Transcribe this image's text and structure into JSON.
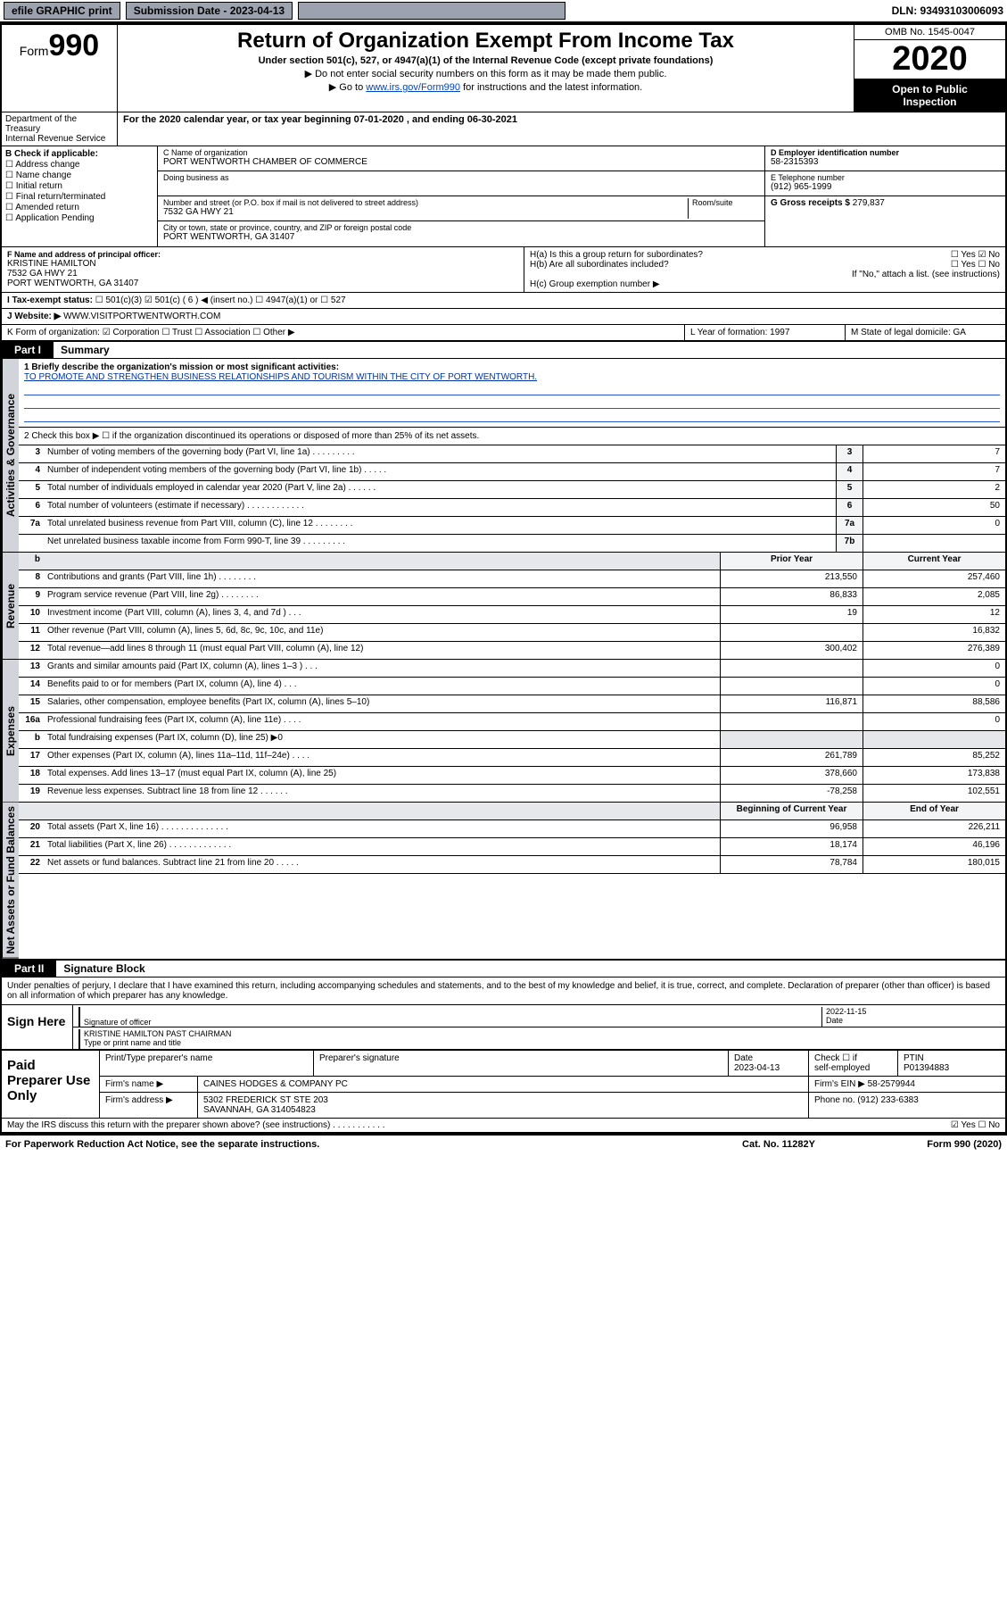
{
  "topBar": {
    "efile": "efile GRAPHIC print",
    "submissionLabel": "Submission Date - 2023-04-13",
    "dln": "DLN: 93493103006093"
  },
  "header": {
    "formWord": "Form",
    "formNum": "990",
    "title": "Return of Organization Exempt From Income Tax",
    "subtitle": "Under section 501(c), 527, or 4947(a)(1) of the Internal Revenue Code (except private foundations)",
    "note1": "▶ Do not enter social security numbers on this form as it may be made them public.",
    "note2pre": "▶ Go to ",
    "note2link": "www.irs.gov/Form990",
    "note2post": " for instructions and the latest information.",
    "omb": "OMB No. 1545-0047",
    "year": "2020",
    "inspection1": "Open to Public",
    "inspection2": "Inspection",
    "dept": "Department of the Treasury",
    "irs": "Internal Revenue Service"
  },
  "periodLine": "For the 2020 calendar year, or tax year beginning 07-01-2020    , and ending 06-30-2021",
  "boxB": {
    "label": "B Check if applicable:",
    "opts": [
      "☐ Address change",
      "☐ Name change",
      "☐ Initial return",
      "☐ Final return/terminated",
      "☐ Amended return",
      "☐ Application Pending"
    ]
  },
  "boxC": {
    "nameLabel": "C Name of organization",
    "name": "PORT WENTWORTH CHAMBER OF COMMERCE",
    "dba": "Doing business as",
    "streetLabel": "Number and street (or P.O. box if mail is not delivered to street address)",
    "roomLabel": "Room/suite",
    "street": "7532 GA HWY 21",
    "cityLabel": "City or town, state or province, country, and ZIP or foreign postal code",
    "city": "PORT WENTWORTH, GA  31407"
  },
  "boxD": {
    "label": "D Employer identification number",
    "value": "58-2315393"
  },
  "boxE": {
    "label": "E Telephone number",
    "value": "(912) 965-1999"
  },
  "boxG": {
    "label": "G Gross receipts $",
    "value": "279,837"
  },
  "boxF": {
    "label": "F  Name and address of principal officer:",
    "name": "KRISTINE HAMILTON",
    "addr1": "7532 GA HWY 21",
    "addr2": "PORT WENTWORTH, GA  31407"
  },
  "boxH": {
    "a": "H(a)  Is this a group return for subordinates?",
    "aYes": "☐ Yes  ☑ No",
    "b": "H(b)  Are all subordinates included?",
    "bYes": "☐ Yes  ☐ No",
    "bNote": "If \"No,\" attach a list. (see instructions)",
    "c": "H(c)  Group exemption number ▶"
  },
  "taxExempt": {
    "label": "I   Tax-exempt status:",
    "opts": "☐ 501(c)(3)   ☑ 501(c) ( 6 ) ◀ (insert no.)   ☐ 4947(a)(1) or   ☐ 527"
  },
  "website": {
    "label": "J   Website: ▶",
    "value": "WWW.VISITPORTWENTWORTH.COM"
  },
  "rowK": {
    "label": "K Form of organization:  ☑ Corporation  ☐ Trust  ☐ Association  ☐ Other ▶",
    "l": "L Year of formation: 1997",
    "m": "M State of legal domicile: GA"
  },
  "partI": {
    "tag": "Part I",
    "title": "Summary"
  },
  "summary": {
    "q1": "1  Briefly describe the organization's mission or most significant activities:",
    "mission": "TO PROMOTE AND STRENGTHEN BUSINESS RELATIONSHIPS AND TOURISM WITHIN THE CITY OF PORT WENTWORTH.",
    "q2": "2   Check this box ▶ ☐  if the organization discontinued its operations or disposed of more than 25% of its net assets.",
    "rows_gov": [
      {
        "n": "3",
        "d": "Number of voting members of the governing body (Part VI, line 1a)   .    .    .    .    .    .    .    .    .",
        "bn": "3",
        "v": "7"
      },
      {
        "n": "4",
        "d": "Number of independent voting members of the governing body (Part VI, line 1b)   .    .    .    .    .",
        "bn": "4",
        "v": "7"
      },
      {
        "n": "5",
        "d": "Total number of individuals employed in calendar year 2020 (Part V, line 2a)   .    .    .    .    .    .",
        "bn": "5",
        "v": "2"
      },
      {
        "n": "6",
        "d": "Total number of volunteers (estimate if necessary)   .    .    .    .    .    .    .    .    .    .    .    .",
        "bn": "6",
        "v": "50"
      },
      {
        "n": "7a",
        "d": "Total unrelated business revenue from Part VIII, column (C), line 12   .    .    .    .    .    .    .    .",
        "bn": "7a",
        "v": "0"
      },
      {
        "n": "",
        "d": "Net unrelated business taxable income from Form 990-T, line 39   .    .    .    .    .    .    .    .    .",
        "bn": "7b",
        "v": ""
      }
    ],
    "hdr": {
      "py": "Prior Year",
      "cy": "Current Year"
    },
    "rows_rev": [
      {
        "n": "8",
        "d": "Contributions and grants (Part VIII, line 1h)   .    .    .    .    .    .    .    .",
        "py": "213,550",
        "cy": "257,460"
      },
      {
        "n": "9",
        "d": "Program service revenue (Part VIII, line 2g)   .    .    .    .    .    .    .    .",
        "py": "86,833",
        "cy": "2,085"
      },
      {
        "n": "10",
        "d": "Investment income (Part VIII, column (A), lines 3, 4, and 7d )   .    .    .",
        "py": "19",
        "cy": "12"
      },
      {
        "n": "11",
        "d": "Other revenue (Part VIII, column (A), lines 5, 6d, 8c, 9c, 10c, and 11e)",
        "py": "",
        "cy": "16,832"
      },
      {
        "n": "12",
        "d": "Total revenue—add lines 8 through 11 (must equal Part VIII, column (A), line 12)",
        "py": "300,402",
        "cy": "276,389"
      }
    ],
    "rows_exp": [
      {
        "n": "13",
        "d": "Grants and similar amounts paid (Part IX, column (A), lines 1–3 )   .    .    .",
        "py": "",
        "cy": "0"
      },
      {
        "n": "14",
        "d": "Benefits paid to or for members (Part IX, column (A), line 4)   .    .    .",
        "py": "",
        "cy": "0"
      },
      {
        "n": "15",
        "d": "Salaries, other compensation, employee benefits (Part IX, column (A), lines 5–10)",
        "py": "116,871",
        "cy": "88,586"
      },
      {
        "n": "16a",
        "d": "Professional fundraising fees (Part IX, column (A), line 11e)   .    .    .    .",
        "py": "",
        "cy": "0"
      },
      {
        "n": "b",
        "d": "Total fundraising expenses (Part IX, column (D), line 25)  ▶0",
        "py": "—shade—",
        "cy": "—shade—"
      },
      {
        "n": "17",
        "d": "Other expenses (Part IX, column (A), lines 11a–11d, 11f–24e)   .    .    .    .",
        "py": "261,789",
        "cy": "85,252"
      },
      {
        "n": "18",
        "d": "Total expenses. Add lines 13–17 (must equal Part IX, column (A), line 25)",
        "py": "378,660",
        "cy": "173,838"
      },
      {
        "n": "19",
        "d": "Revenue less expenses. Subtract line 18 from line 12   .    .    .    .    .    .",
        "py": "-78,258",
        "cy": "102,551"
      }
    ],
    "hdr2": {
      "py": "Beginning of Current Year",
      "cy": "End of Year"
    },
    "rows_net": [
      {
        "n": "20",
        "d": "Total assets (Part X, line 16)   .    .    .    .    .    .    .    .    .    .    .    .    .    .",
        "py": "96,958",
        "cy": "226,211"
      },
      {
        "n": "21",
        "d": "Total liabilities (Part X, line 26)   .    .    .    .    .    .    .    .    .    .    .    .    .",
        "py": "18,174",
        "cy": "46,196"
      },
      {
        "n": "22",
        "d": "Net assets or fund balances. Subtract line 21 from line 20   .    .    .    .    .",
        "py": "78,784",
        "cy": "180,015"
      }
    ]
  },
  "vtabs": {
    "gov": "Activities & Governance",
    "rev": "Revenue",
    "exp": "Expenses",
    "net": "Net Assets or Fund Balances"
  },
  "partII": {
    "tag": "Part II",
    "title": "Signature Block"
  },
  "sigPara": "Under penalties of perjury, I declare that I have examined this return, including accompanying schedules and statements, and to the best of my knowledge and belief, it is true, correct, and complete. Declaration of preparer (other than officer) is based on all information of which preparer has any knowledge.",
  "sign": {
    "here": "Sign Here",
    "sigOf": "Signature of officer",
    "date": "2022-11-15",
    "dateLbl": "Date",
    "name": "KRISTINE HAMILTON  PAST CHAIRMAN",
    "typeLbl": "Type or print name and title"
  },
  "prep": {
    "label": "Paid Preparer Use Only",
    "h1": "Print/Type preparer's name",
    "h2": "Preparer's signature",
    "h3": "Date",
    "h3v": "2023-04-13",
    "h4a": "Check ☐ if",
    "h4b": "self-employed",
    "h5": "PTIN",
    "h5v": "P01394883",
    "firmName": "Firm's name    ▶",
    "firmNameV": "CAINES HODGES & COMPANY PC",
    "firmEin": "Firm's EIN ▶ 58-2579944",
    "firmAddr": "Firm's address ▶",
    "firmAddrV1": "5302 FREDERICK ST STE 203",
    "firmAddrV2": "SAVANNAH, GA  314054823",
    "phone": "Phone no. (912) 233-6383"
  },
  "discuss": {
    "q": "May the IRS discuss this return with the preparer shown above? (see instructions)   .    .    .    .    .    .    .    .    .    .    .",
    "a": "☑ Yes   ☐ No"
  },
  "footer": {
    "pra": "For Paperwork Reduction Act Notice, see the separate instructions.",
    "cat": "Cat. No. 11282Y",
    "form": "Form 990 (2020)"
  }
}
